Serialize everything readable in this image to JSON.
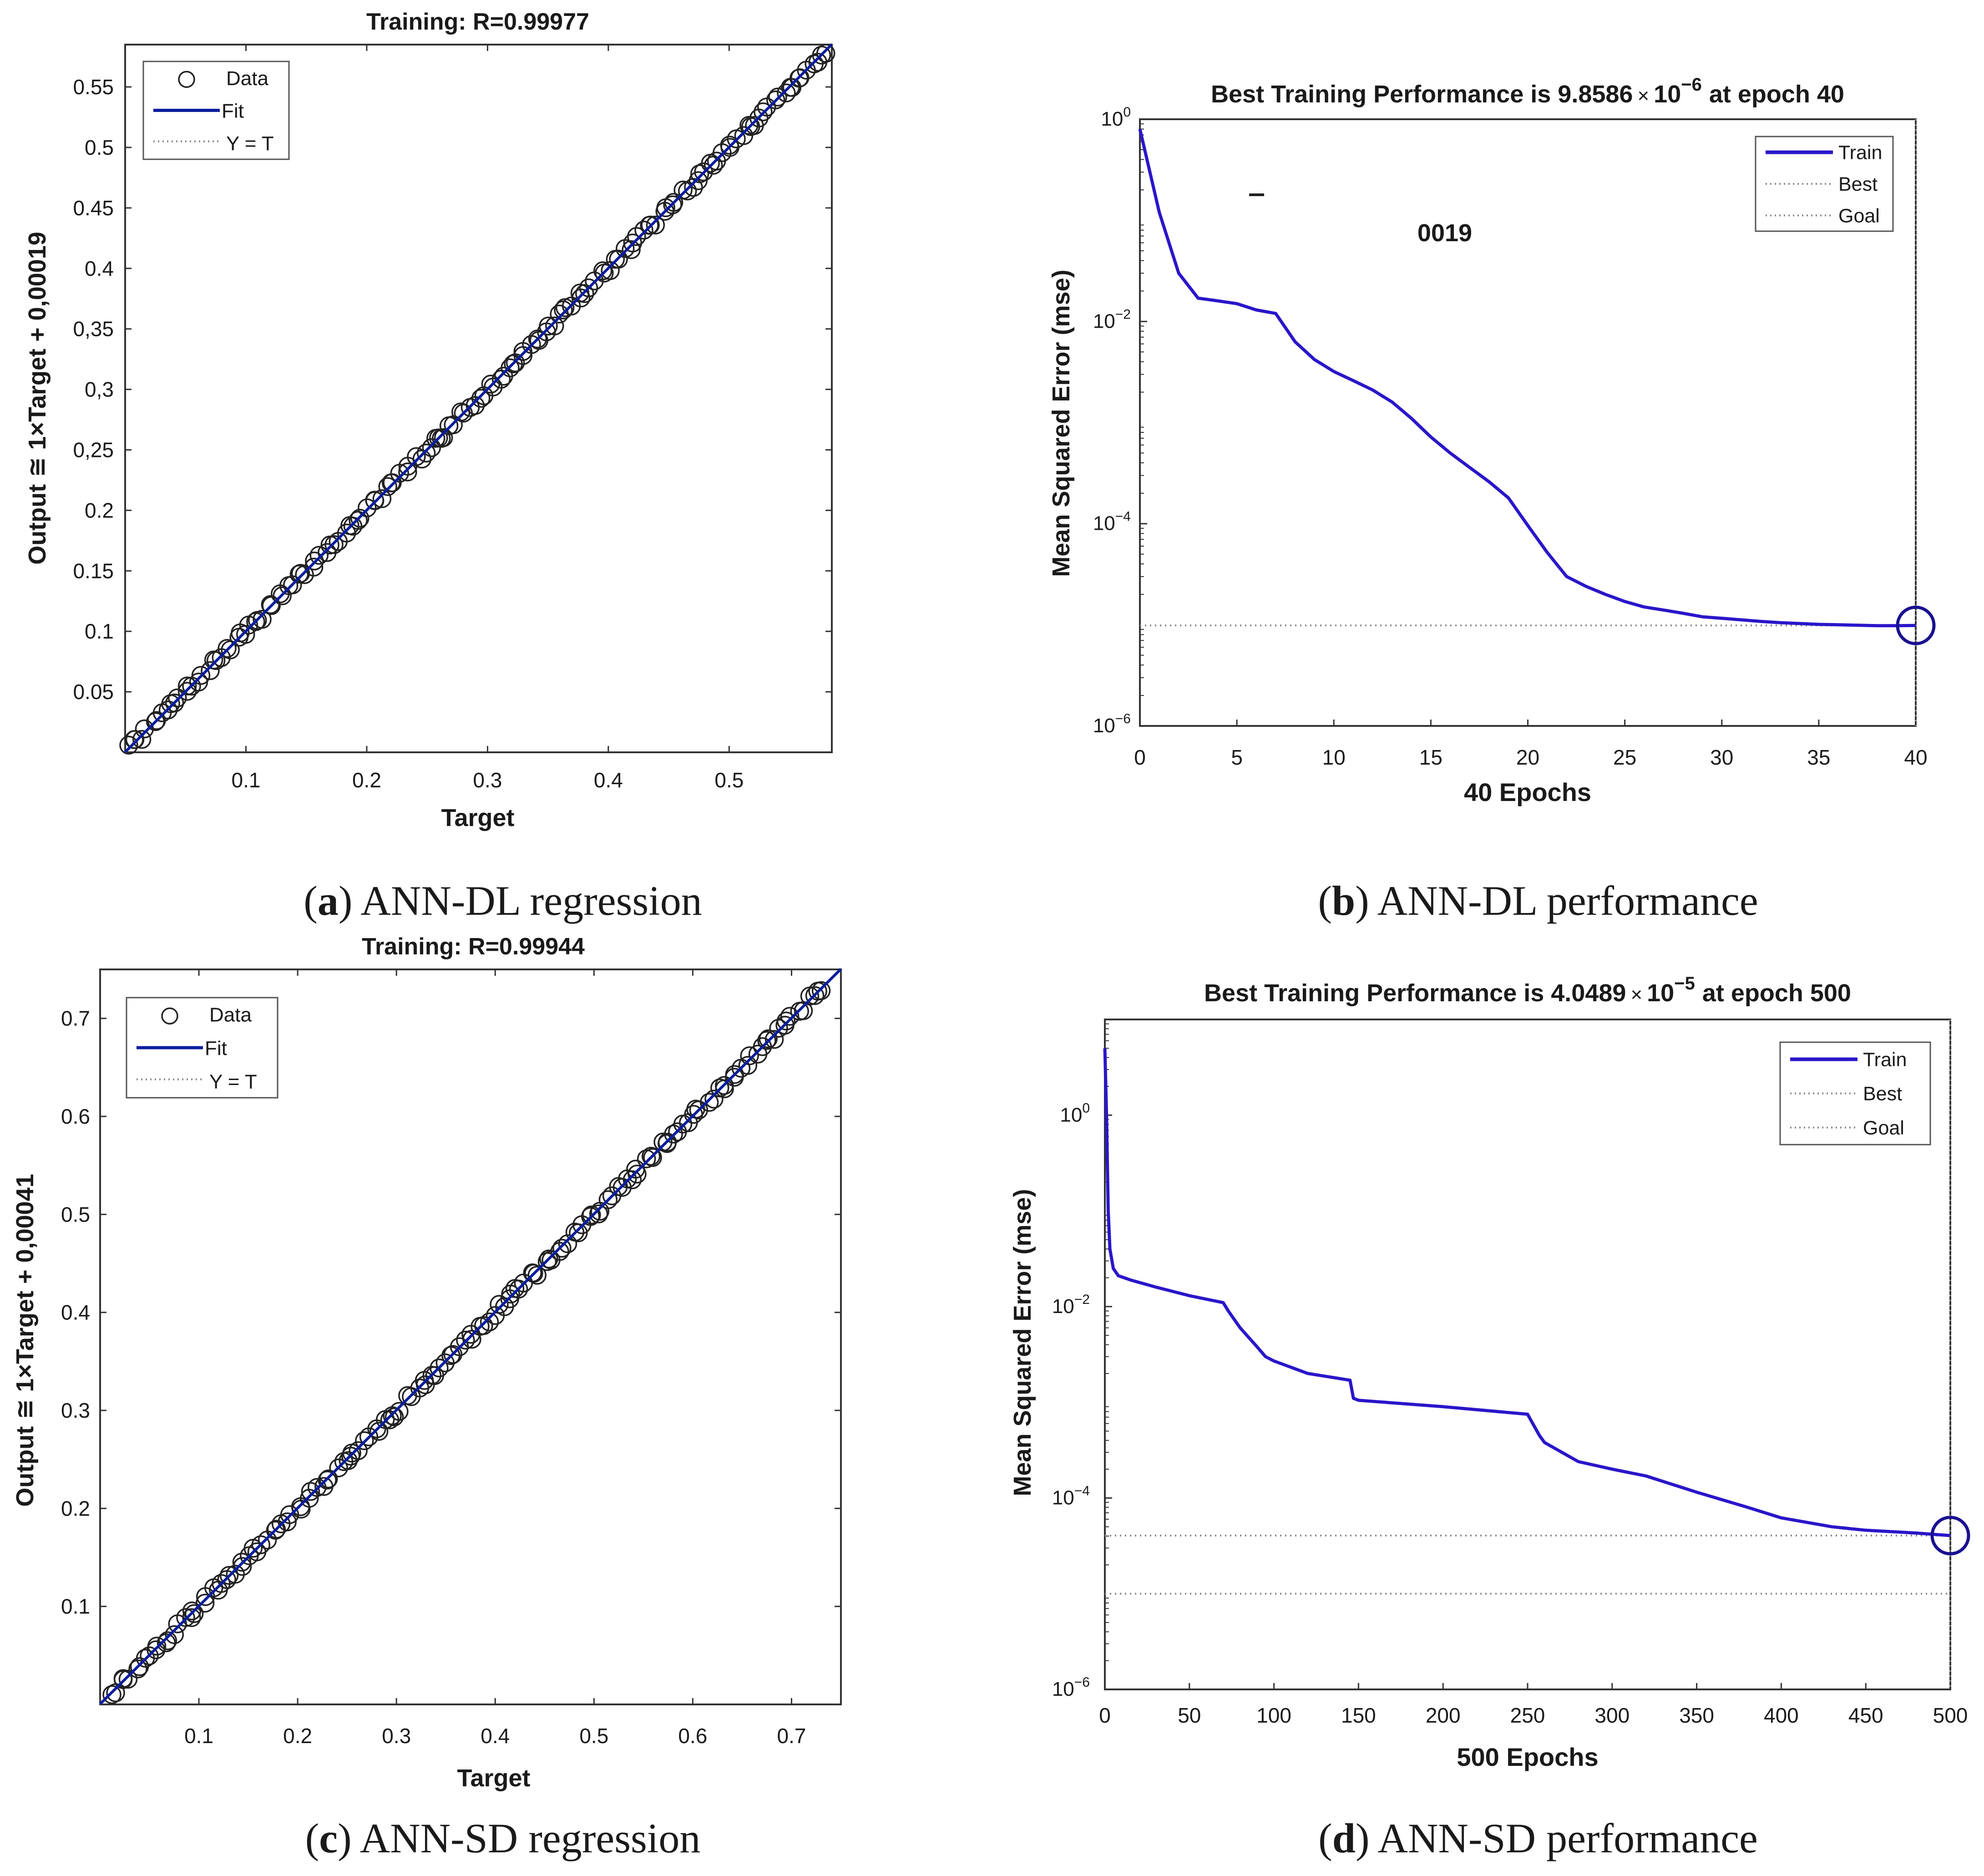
{
  "chart_data": [
    {
      "id": "a",
      "type": "scatter",
      "title": "Training: R=0.99977",
      "xlabel": "Target",
      "ylabel": "Output ≅ 1×Target + 0,00019",
      "xlim": [
        0,
        0.585
      ],
      "ylim": [
        0,
        0.585
      ],
      "xticks": [
        0.1,
        0.2,
        0.3,
        0.4,
        0.5
      ],
      "xtick_labels": [
        "0.1",
        "0.2",
        "0.3",
        "0.4",
        "0.5"
      ],
      "yticks": [
        0.05,
        0.1,
        0.15,
        0.2,
        0.25,
        0.3,
        0.35,
        0.4,
        0.45,
        0.5,
        0.55
      ],
      "ytick_labels": [
        "0.05",
        "0.1",
        "0.15",
        "0.2",
        "0,25",
        "0,3",
        "0,35",
        "0.4",
        "0.45",
        "0.5",
        "0.55"
      ],
      "fit": {
        "slope": 1,
        "intercept": 0.00019
      },
      "data_points": {
        "n": 150,
        "min": 0.003,
        "max": 0.58
      },
      "legend": [
        "Data",
        "Fit",
        "Y = T"
      ],
      "legend_position": "top-left",
      "caption_letter": "a",
      "caption_text": " ANN-DL regression"
    },
    {
      "id": "b",
      "type": "line",
      "yscale": "log",
      "title_prefix": "Best Training Performance is 9.8586",
      "title_times": "×",
      "title_base": "10",
      "title_exp": "−6",
      "title_suffix": "at epoch 40",
      "xlabel": "40 Epochs",
      "ylabel": "Mean Squared Error  (mse)",
      "xlim": [
        0,
        40
      ],
      "ylim_exp": [
        -6,
        0
      ],
      "xticks": [
        0,
        5,
        10,
        15,
        20,
        25,
        30,
        35,
        40
      ],
      "ytick_exps": [
        0,
        -2,
        -4,
        -6
      ],
      "series": [
        {
          "name": "Train",
          "x": [
            0,
            1,
            2,
            3,
            4,
            5,
            6,
            7,
            8,
            9,
            10,
            11,
            12,
            13,
            14,
            15,
            16,
            17,
            18,
            19,
            20,
            21,
            22,
            23,
            24,
            25,
            26,
            27,
            28,
            29,
            30,
            31,
            32,
            33,
            34,
            35,
            36,
            37,
            38,
            39,
            40
          ],
          "y": [
            0.8,
            0.12,
            0.03,
            0.017,
            0.016,
            0.015,
            0.013,
            0.012,
            0.0063,
            0.0042,
            0.0032,
            0.0026,
            0.0021,
            0.0016,
            0.0011,
            0.00072,
            0.0005,
            0.00036,
            0.00026,
            0.00018,
            9.6e-05,
            5.2e-05,
            3e-05,
            2.4e-05,
            2e-05,
            1.7e-05,
            1.5e-05,
            1.4e-05,
            1.3e-05,
            1.2e-05,
            1.16e-05,
            1.12e-05,
            1.08e-05,
            1.05e-05,
            1.03e-05,
            1.01e-05,
            1e-05,
            9.9e-06,
            9.8e-06,
            9.8e-06,
            9.8586e-06
          ]
        }
      ],
      "best": {
        "epoch": 40,
        "value": 9.8586e-06
      },
      "goal": 0,
      "legend": [
        "Train",
        "Best",
        "Goal"
      ],
      "legend_position": "top-right",
      "annotation": "0019",
      "caption_letter": "b",
      "caption_text": " ANN-DL performance"
    },
    {
      "id": "c",
      "type": "scatter",
      "title": "Training: R=0.99944",
      "xlabel": "Target",
      "ylabel": "Output ≅ 1×Target + 0,00041",
      "xlim": [
        0,
        0.75
      ],
      "ylim": [
        0,
        0.75
      ],
      "xticks": [
        0.1,
        0.2,
        0.3,
        0.4,
        0.5,
        0.6,
        0.7
      ],
      "xtick_labels": [
        "0.1",
        "0.2",
        "0.3",
        "0.4",
        "0.5",
        "0.6",
        "0.7"
      ],
      "yticks": [
        0.1,
        0.2,
        0.3,
        0.4,
        0.5,
        0.6,
        0.7
      ],
      "ytick_labels": [
        "0.1",
        "0.2",
        "0.3",
        "0.4",
        "0.5",
        "0.6",
        "0.7"
      ],
      "fit": {
        "slope": 1,
        "intercept": 0.00041
      },
      "data_points": {
        "n": 150,
        "min": 0.012,
        "max": 0.73
      },
      "legend": [
        "Data",
        "Fit",
        "Y = T"
      ],
      "legend_position": "top-left",
      "caption_letter": "c",
      "caption_text": " ANN-SD regression"
    },
    {
      "id": "d",
      "type": "line",
      "yscale": "log",
      "title_prefix": "Best Training Performance is 4.0489",
      "title_times": "×",
      "title_base": "10",
      "title_exp": "−5",
      "title_suffix": "at epoch 500",
      "xlabel": "500 Epochs",
      "ylabel": "Mean Squared Error  (mse)",
      "xlim": [
        0,
        500
      ],
      "ylim_exp": [
        -6,
        1
      ],
      "xticks": [
        0,
        50,
        100,
        150,
        200,
        250,
        300,
        350,
        400,
        450,
        500
      ],
      "ytick_exps": [
        0,
        -2,
        -4,
        -6
      ],
      "series": [
        {
          "name": "Train",
          "x": [
            0,
            1,
            2,
            3,
            5,
            8,
            15,
            30,
            50,
            70,
            73,
            80,
            90,
            95,
            100,
            120,
            145,
            147,
            150,
            200,
            250,
            257,
            260,
            280,
            300,
            320,
            350,
            380,
            400,
            430,
            450,
            480,
            500
          ],
          "y": [
            5,
            1,
            0.1,
            0.04,
            0.025,
            0.021,
            0.019,
            0.016,
            0.013,
            0.011,
            0.009,
            0.006,
            0.0038,
            0.003,
            0.0027,
            0.002,
            0.0017,
            0.0011,
            0.00105,
            0.0009,
            0.00075,
            0.00045,
            0.00038,
            0.00024,
            0.0002,
            0.00017,
            0.000115,
            8e-05,
            6.2e-05,
            5e-05,
            4.6e-05,
            4.3e-05,
            4.0489e-05
          ]
        }
      ],
      "best": {
        "epoch": 500,
        "value": 4.0489e-05
      },
      "goal": 1e-05,
      "legend": [
        "Train",
        "Best",
        "Goal"
      ],
      "legend_position": "top-right",
      "caption_letter": "d",
      "caption_text": " ANN-SD performance"
    }
  ],
  "colors": {
    "fit_line": "#0b1e9e",
    "train_line": "#2a16c9",
    "best_marker": "#1a1090",
    "marker": "#222222",
    "axes": "#333333",
    "dotted": "#888888",
    "text": "#1a1a1a"
  }
}
